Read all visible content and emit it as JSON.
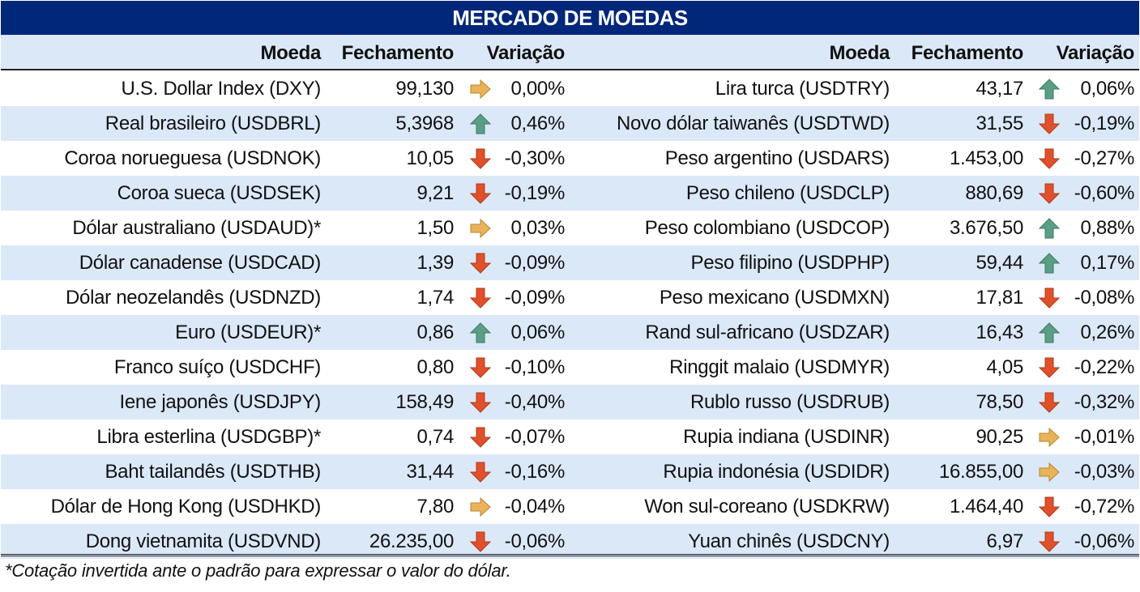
{
  "title": "MERCADO DE MOEDAS",
  "headers": {
    "currency": "Moeda",
    "close": "Fechamento",
    "change": "Variação"
  },
  "colors": {
    "header_bg": "#00277a",
    "band": "#dbe8f8",
    "up": "#5b9e86",
    "down": "#e0502a",
    "flat": "#e8b35a"
  },
  "left": [
    {
      "name": "U.S. Dollar Index (DXY)",
      "close": "99,130",
      "trend": "flat",
      "change": "0,00%"
    },
    {
      "name": "Real brasileiro (USDBRL)",
      "close": "5,3968",
      "trend": "up",
      "change": "0,46%"
    },
    {
      "name": "Coroa norueguesa (USDNOK)",
      "close": "10,05",
      "trend": "down",
      "change": "-0,30%"
    },
    {
      "name": "Coroa sueca (USDSEK)",
      "close": "9,21",
      "trend": "down",
      "change": "-0,19%"
    },
    {
      "name": "Dólar australiano (USDAUD)*",
      "close": "1,50",
      "trend": "flat",
      "change": "0,03%"
    },
    {
      "name": "Dólar canadense (USDCAD)",
      "close": "1,39",
      "trend": "down",
      "change": "-0,09%"
    },
    {
      "name": "Dólar neozelandês (USDNZD)",
      "close": "1,74",
      "trend": "down",
      "change": "-0,09%"
    },
    {
      "name": "Euro (USDEUR)*",
      "close": "0,86",
      "trend": "up",
      "change": "0,06%"
    },
    {
      "name": "Franco suíço (USDCHF)",
      "close": "0,80",
      "trend": "down",
      "change": "-0,10%"
    },
    {
      "name": "Iene japonês (USDJPY)",
      "close": "158,49",
      "trend": "down",
      "change": "-0,40%"
    },
    {
      "name": "Libra esterlina (USDGBP)*",
      "close": "0,74",
      "trend": "down",
      "change": "-0,07%"
    },
    {
      "name": "Baht tailandês (USDTHB)",
      "close": "31,44",
      "trend": "down",
      "change": "-0,16%"
    },
    {
      "name": "Dólar de Hong Kong (USDHKD)",
      "close": "7,80",
      "trend": "flat",
      "change": "-0,04%"
    },
    {
      "name": "Dong vietnamita (USDVND)",
      "close": "26.235,00",
      "trend": "down",
      "change": "-0,06%"
    }
  ],
  "right": [
    {
      "name": "Lira turca (USDTRY)",
      "close": "43,17",
      "trend": "up",
      "change": "0,06%"
    },
    {
      "name": "Novo dólar taiwanês (USDTWD)",
      "close": "31,55",
      "trend": "down",
      "change": "-0,19%"
    },
    {
      "name": "Peso argentino (USDARS)",
      "close": "1.453,00",
      "trend": "down",
      "change": "-0,27%"
    },
    {
      "name": "Peso chileno (USDCLP)",
      "close": "880,69",
      "trend": "down",
      "change": "-0,60%"
    },
    {
      "name": "Peso colombiano (USDCOP)",
      "close": "3.676,50",
      "trend": "up",
      "change": "0,88%"
    },
    {
      "name": "Peso filipino (USDPHP)",
      "close": "59,44",
      "trend": "up",
      "change": "0,17%"
    },
    {
      "name": "Peso mexicano (USDMXN)",
      "close": "17,81",
      "trend": "down",
      "change": "-0,08%"
    },
    {
      "name": "Rand sul-africano (USDZAR)",
      "close": "16,43",
      "trend": "up",
      "change": "0,26%"
    },
    {
      "name": "Ringgit malaio (USDMYR)",
      "close": "4,05",
      "trend": "down",
      "change": "-0,22%"
    },
    {
      "name": "Rublo russo (USDRUB)",
      "close": "78,50",
      "trend": "down",
      "change": "-0,32%"
    },
    {
      "name": "Rupia indiana (USDINR)",
      "close": "90,25",
      "trend": "flat",
      "change": "-0,01%"
    },
    {
      "name": "Rupia indonésia (USDIDR)",
      "close": "16.855,00",
      "trend": "flat",
      "change": "-0,03%"
    },
    {
      "name": "Won sul-coreano (USDKRW)",
      "close": "1.464,40",
      "trend": "down",
      "change": "-0,72%"
    },
    {
      "name": "Yuan chinês (USDCNY)",
      "close": "6,97",
      "trend": "down",
      "change": "-0,06%"
    }
  ],
  "footnote": "*Cotação invertida ante o padrão para expressar o valor do dólar."
}
